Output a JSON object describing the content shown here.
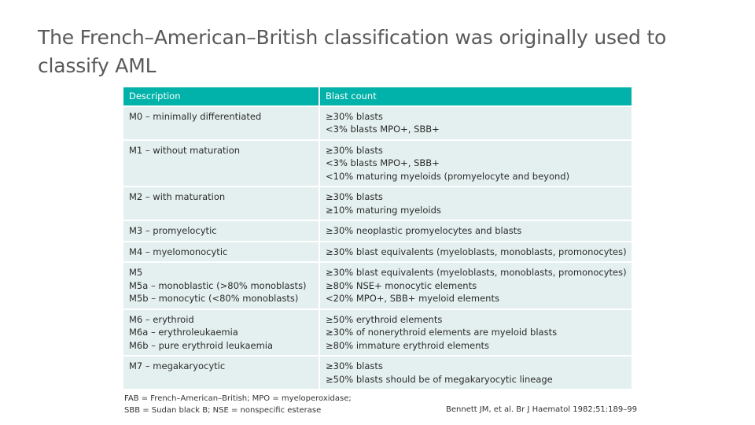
{
  "slide": {
    "title": "The French–American–British classification was originally used to classify AML"
  },
  "table": {
    "headers": [
      "Description",
      "Blast count"
    ],
    "rows": [
      {
        "description": [
          "M0 – minimally differentiated"
        ],
        "blast": [
          "≥30% blasts",
          "<3% blasts MPO+, SBB+"
        ]
      },
      {
        "description": [
          "M1 – without maturation"
        ],
        "blast": [
          "≥30% blasts",
          "<3% blasts MPO+, SBB+",
          "<10% maturing myeloids (promyelocyte and beyond)"
        ]
      },
      {
        "description": [
          "M2 – with maturation"
        ],
        "blast": [
          "≥30% blasts",
          "≥10% maturing myeloids"
        ]
      },
      {
        "description": [
          "M3 – promyelocytic"
        ],
        "blast": [
          "≥30% neoplastic promyelocytes and blasts"
        ]
      },
      {
        "description": [
          "M4 – myelomonocytic"
        ],
        "blast": [
          "≥30% blast equivalents (myeloblasts, monoblasts, promonocytes)"
        ]
      },
      {
        "description": [
          "M5",
          "M5a – monoblastic (>80% monoblasts)",
          "M5b – monocytic (<80% monoblasts)"
        ],
        "blast": [
          "≥30% blast equivalents (myeloblasts, monoblasts, promonocytes)",
          "≥80% NSE+ monocytic elements",
          "<20% MPO+, SBB+ myeloid elements"
        ]
      },
      {
        "description": [
          "M6 – erythroid",
          "M6a – erythroleukaemia",
          "M6b – pure erythroid leukaemia"
        ],
        "blast": [
          "≥50% erythroid elements",
          "≥30% of nonerythroid elements are myeloid blasts",
          "≥80% immature erythroid elements"
        ]
      },
      {
        "description": [
          "M7 – megakaryocytic"
        ],
        "blast": [
          "≥30% blasts",
          "≥50% blasts should be of megakaryocytic lineage"
        ]
      }
    ]
  },
  "footnote": {
    "abbreviations": [
      "FAB = French–American–British; MPO = myeloperoxidase;",
      "SBB = Sudan black B; NSE = nonspecific esterase"
    ],
    "reference": "Bennett JM, et al. Br J Haematol 1982;51:189–99"
  }
}
